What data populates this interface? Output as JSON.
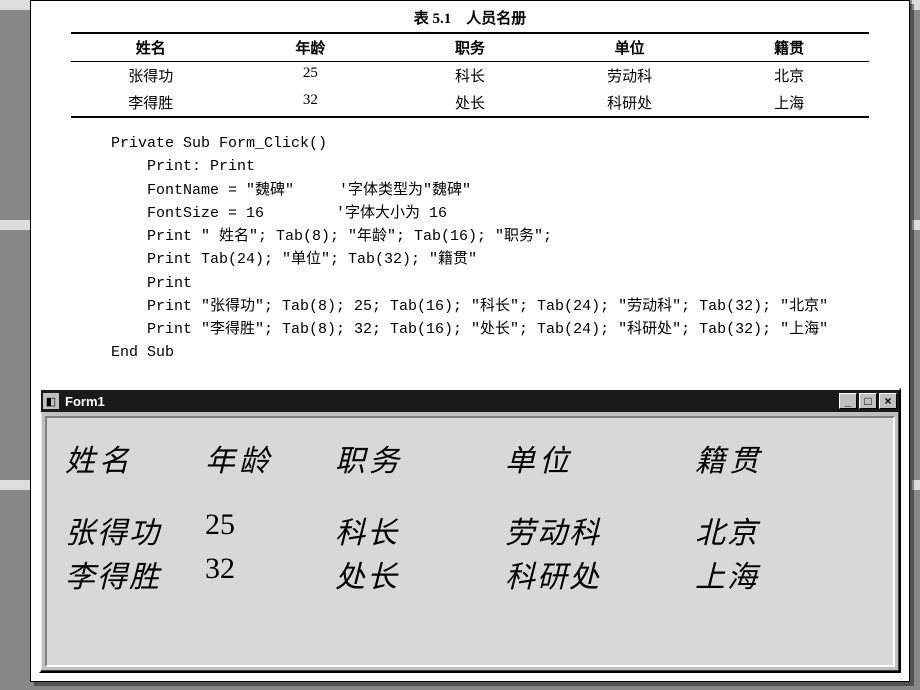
{
  "table": {
    "caption": "表 5.1　人员名册",
    "headers": [
      "姓名",
      "年龄",
      "职务",
      "单位",
      "籍贯"
    ],
    "rows": [
      [
        "张得功",
        "25",
        "科长",
        "劳动科",
        "北京"
      ],
      [
        "李得胜",
        "32",
        "处长",
        "科研处",
        "上海"
      ]
    ]
  },
  "code": {
    "l0": "Private Sub Form_Click()",
    "l1": "    Print: Print",
    "l2": "    FontName = \"魏碑\"     '字体类型为\"魏碑\"",
    "l3": "    FontSize = 16        '字体大小为 16",
    "l4": "    Print \" 姓名\"; Tab(8); \"年龄\"; Tab(16); \"职务\";",
    "l5": "    Print Tab(24); \"单位\"; Tab(32); \"籍贯\"",
    "l6": "    Print",
    "l7": "    Print \"张得功\"; Tab(8); 25; Tab(16); \"科长\"; Tab(24); \"劳动科\"; Tab(32); \"北京\"",
    "l8": "    Print \"李得胜\"; Tab(8); 32; Tab(16); \"处长\"; Tab(24); \"科研处\"; Tab(32); \"上海\"",
    "l9": "End Sub"
  },
  "form": {
    "title": "Form1",
    "icon_glyph": "◧",
    "btn_min": "_",
    "btn_max": "□",
    "btn_close": "×",
    "headers": [
      "姓名",
      "年龄",
      "职务",
      "单位",
      "籍贯"
    ],
    "rows": [
      [
        "张得功",
        "25",
        "科长",
        "劳动科",
        "北京"
      ],
      [
        "李得胜",
        "32",
        "处长",
        "科研处",
        "上海"
      ]
    ],
    "style": {
      "font_name": "魏碑",
      "font_size_pt": 16,
      "body_bg": "#d8d8d8",
      "window_bg": "#c0c0c0",
      "titlebar_bg": "#1a1a1a",
      "titlebar_fg": "#ffffff"
    }
  },
  "page": {
    "bg": "#ffffff",
    "outer_bg": "#888888",
    "text_color": "#000000"
  }
}
